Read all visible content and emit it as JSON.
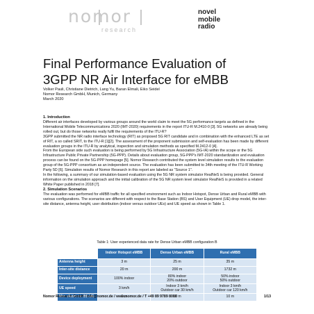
{
  "logo": {
    "word": "nomor",
    "subtitle": "research",
    "tagline": [
      "novel",
      "mobile",
      "radio"
    ]
  },
  "title": [
    "Final Performance Evaluation of",
    "3GPP NR Air Interface for eMBB"
  ],
  "meta": [
    "Volker Pauli, Christiane Dietrich, Lang Yu, Baran Elmali, Eiko Seidel",
    "Nomor Research GmbH, Munich, Germany",
    "March 2020"
  ],
  "sections": [
    {
      "heading": "1. Introduction",
      "paragraphs": [
        "Different air interfaces developed by various groups around the world claim to meet the 5G performance targets as defined in the International Mobile Telecommunications 2020 (IMT-2020) requirements in the report ITU-R M.2410-0 [3]. 5G networks are already being rolled out, but do those networks really fulfil the requirements of the ITU-R?",
        "3GPP submitted the NR radio interface technology (RIT) as proposed 5G RIT candidate and in combination with the enhanced LTE as set of RIT, a so called SRIT, to the ITU-R [1][2]. The assessment of the proponent submission and self-evaluation has been made by different evaluation groups in the ITU-R by analytical, inspection and simulation methods as specified M.2412-0 [4].",
        "From the European side such evaluation is being performed by 5G Infrastructure Association (5G-IA) within the scope or the 5G Infrastructure Public Private Partnership (5G-PPP). Details about evaluation group, 5G-PPP's IMT-2020 standardization and evaluation process can be found on the 5G-PPP homepage [5]. Nomor Research contributed the system level simulation results to the evaluation group of the 5G-PPP consortium as an independent source. The evaluation has been submitted to 34th meeting of the ITU-R Working Party 5D [6]. Simulation results of Nomor Research in this report are labeled as \"Source 1\".",
        "In the following, a summary of our simulation-based evaluation using the 5G NR system simulator RealNeS is being provided. General information on the simulation approach and the initial calibration of the 5G NR system level simulator RealNeS is provided in a related White Paper published in 2018 [7]."
      ]
    },
    {
      "heading": "2. Simulation Scenarios",
      "paragraphs": [
        "The evaluation was performed for eMBB traffic for all specified environment such as Indoor Hotspot, Dense Urban and Rural eMBB with various configurations. The scenarios are different with respect to the Base Station (BS) and User Equipment (UE) drop model, the inter-site distance, antenna height, user distribution (indoor versus outdoor UEs) and UE speed as shown in Table 1."
      ]
    }
  ],
  "table": {
    "caption": "Table 1: User experienced data rate for Dense Urban eMBB configuration B",
    "columns": [
      "Indoor Hotspot eMBB",
      "Dense Urban eMBB",
      "Rural eMBB"
    ],
    "rows": [
      {
        "label": "Antenna height",
        "cells": [
          "3 m",
          "25 m",
          "35 m"
        ]
      },
      {
        "label": "Inter-site distance",
        "cells": [
          "20 m",
          "200 m",
          "1732 m"
        ]
      },
      {
        "label": "Device deployment",
        "cells": [
          "100% indoor",
          "80% indoor\n20% outdoor",
          "50% indoor\n50% outdoor"
        ]
      },
      {
        "label": "UE speed",
        "cells": [
          "3 km/h",
          "Indoor 3 km/h\nOutdoor car 30 km/h",
          "Indoor 3 km/h\nOutdoor car 120 km/h"
        ]
      },
      {
        "label": "Min. distance BS-UE",
        "cells": [
          "0 m",
          "10 m",
          "10 m"
        ]
      }
    ]
  },
  "footer": {
    "text": "Nomor Research GmbH   /   info@nomor.de   /   www.nomor.de   /   T +49 89 9789 8000",
    "page": "1/13"
  }
}
